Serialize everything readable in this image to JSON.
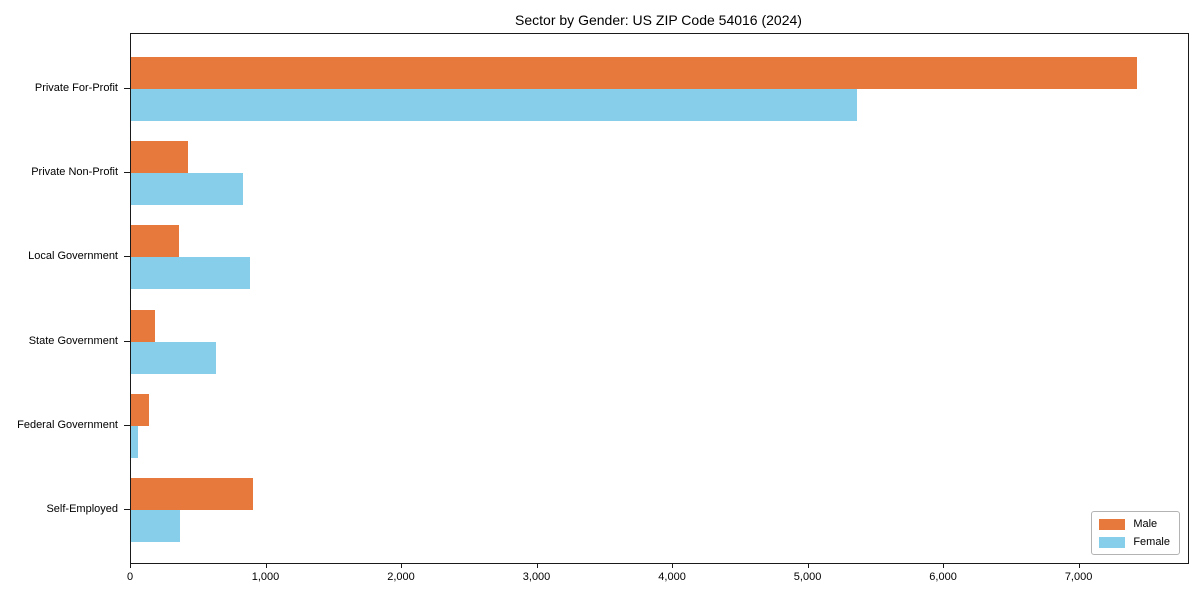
{
  "title": "Sector by Gender: US ZIP Code 54016 (2024)",
  "colors": {
    "male": "#E8793D",
    "female": "#87CEEB",
    "spine": "#1a1a1a",
    "legend_border": "#b3b3b3",
    "background": "#ffffff"
  },
  "chart_data": {
    "type": "bar",
    "orientation": "horizontal",
    "title": "Sector by Gender: US ZIP Code 54016 (2024)",
    "categories": [
      "Private For-Profit",
      "Private Non-Profit",
      "Local Government",
      "State Government",
      "Federal Government",
      "Self-Employed"
    ],
    "series": [
      {
        "name": "Male",
        "color": "#E8793D",
        "values": [
          7420,
          420,
          355,
          180,
          130,
          900
        ]
      },
      {
        "name": "Female",
        "color": "#87CEEB",
        "values": [
          5360,
          830,
          880,
          630,
          50,
          360
        ]
      }
    ],
    "xlabel": "",
    "ylabel": "",
    "xlim": [
      0,
      7800
    ],
    "xticks": [
      0,
      1000,
      2000,
      3000,
      4000,
      5000,
      6000,
      7000
    ],
    "xtick_labels": [
      "0",
      "1,000",
      "2,000",
      "3,000",
      "4,000",
      "5,000",
      "6,000",
      "7,000"
    ],
    "grid": false,
    "legend_position": "lower right",
    "legend_labels": [
      "Male",
      "Female"
    ]
  }
}
